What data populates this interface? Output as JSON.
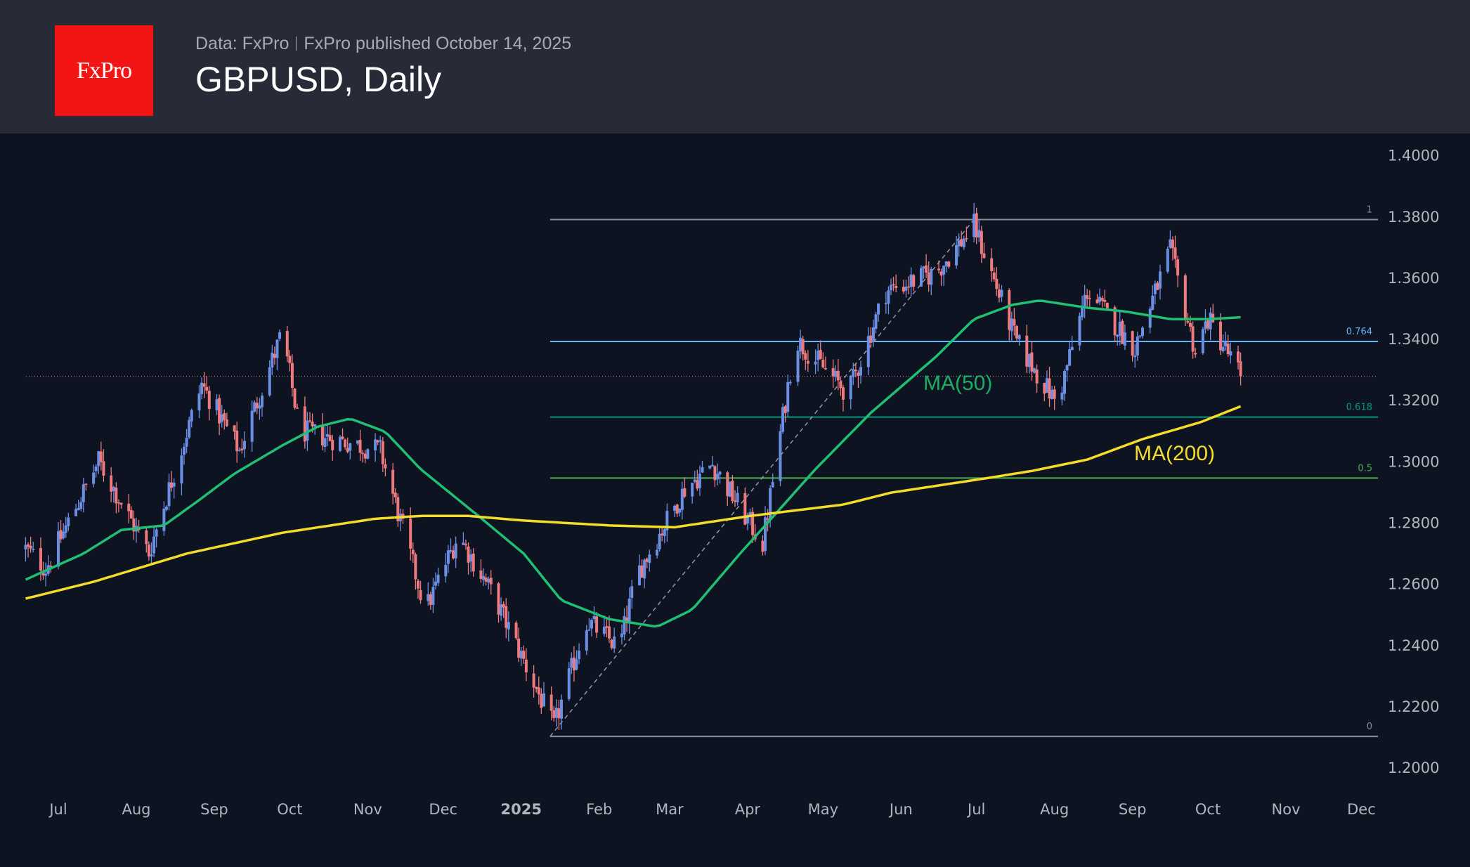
{
  "header": {
    "logo_text": "FxPro",
    "data_source": "Data: FxPro",
    "published": "FxPro published October 14, 2025",
    "title": "GBPUSD, Daily"
  },
  "colors": {
    "up": "#6c8fe6",
    "down": "#ef7a7d",
    "ma50": "#1fbf74",
    "ma200": "#f5dc2a",
    "price_line": "#f77c80"
  },
  "chart_data": {
    "type": "candlestick",
    "title": "GBPUSD, Daily",
    "x_unit": "days since 2024-07-01",
    "ylim": [
      1.2,
      1.4
    ],
    "y_ticks": [
      "1.4000",
      "1.3800",
      "1.3600",
      "1.3400",
      "1.3200",
      "1.3000",
      "1.2800",
      "1.2600",
      "1.2400",
      "1.2200",
      "1.2000"
    ],
    "x_ticks": [
      {
        "label": "Jul",
        "day": 0
      },
      {
        "label": "Aug",
        "day": 31
      },
      {
        "label": "Sep",
        "day": 62
      },
      {
        "label": "Oct",
        "day": 92
      },
      {
        "label": "Nov",
        "day": 123
      },
      {
        "label": "Dec",
        "day": 153
      },
      {
        "label": "2025",
        "day": 184,
        "bold": true
      },
      {
        "label": "Feb",
        "day": 215
      },
      {
        "label": "Mar",
        "day": 243
      },
      {
        "label": "Apr",
        "day": 274
      },
      {
        "label": "May",
        "day": 304
      },
      {
        "label": "Jun",
        "day": 335
      },
      {
        "label": "Jul",
        "day": 365
      },
      {
        "label": "Aug",
        "day": 396
      },
      {
        "label": "Sep",
        "day": 427
      },
      {
        "label": "Oct",
        "day": 457
      },
      {
        "label": "Nov",
        "day": 488
      },
      {
        "label": "Dec",
        "day": 518
      }
    ],
    "price_path": [
      [
        -13,
        1.2714
      ],
      [
        -5,
        1.265
      ],
      [
        16,
        1.3
      ],
      [
        36,
        1.27
      ],
      [
        57,
        1.325
      ],
      [
        72,
        1.3035
      ],
      [
        89,
        1.342
      ],
      [
        96,
        1.31
      ],
      [
        128,
        1.3035
      ],
      [
        146,
        1.2515
      ],
      [
        159,
        1.276
      ],
      [
        174,
        1.2545
      ],
      [
        197,
        1.213
      ],
      [
        210,
        1.248
      ],
      [
        223,
        1.239
      ],
      [
        230,
        1.263
      ],
      [
        249,
        1.291
      ],
      [
        260,
        1.299
      ],
      [
        280,
        1.273
      ],
      [
        293,
        1.34
      ],
      [
        314,
        1.322
      ],
      [
        329,
        1.3556
      ],
      [
        349,
        1.3617
      ],
      [
        364,
        1.377
      ],
      [
        381,
        1.3387
      ],
      [
        397,
        1.3188
      ],
      [
        409,
        1.3556
      ],
      [
        428,
        1.337
      ],
      [
        442,
        1.369
      ],
      [
        452,
        1.3357
      ],
      [
        457,
        1.3464
      ],
      [
        470,
        1.328
      ]
    ],
    "series": [
      {
        "name": "MA(50)",
        "label": "MA(50)",
        "points": [
          [
            -13,
            1.2613
          ],
          [
            10,
            1.2698
          ],
          [
            25,
            1.2775
          ],
          [
            42,
            1.279
          ],
          [
            55,
            1.2867
          ],
          [
            70,
            1.2959
          ],
          [
            89,
            1.3051
          ],
          [
            103,
            1.3112
          ],
          [
            116,
            1.3139
          ],
          [
            130,
            1.3096
          ],
          [
            144,
            1.2974
          ],
          [
            167,
            1.2821
          ],
          [
            185,
            1.2698
          ],
          [
            200,
            1.2545
          ],
          [
            219,
            1.2484
          ],
          [
            238,
            1.2459
          ],
          [
            252,
            1.2515
          ],
          [
            271,
            1.2698
          ],
          [
            286,
            1.2836
          ],
          [
            301,
            1.2974
          ],
          [
            323,
            1.3158
          ],
          [
            349,
            1.3342
          ],
          [
            364,
            1.3464
          ],
          [
            379,
            1.351
          ],
          [
            390,
            1.3525
          ],
          [
            409,
            1.3501
          ],
          [
            424,
            1.3489
          ],
          [
            442,
            1.3464
          ],
          [
            457,
            1.3464
          ],
          [
            470,
            1.347
          ]
        ]
      },
      {
        "name": "MA(200)",
        "label": "MA(200)",
        "points": [
          [
            -13,
            1.2551
          ],
          [
            14,
            1.2606
          ],
          [
            51,
            1.2698
          ],
          [
            89,
            1.2766
          ],
          [
            126,
            1.2812
          ],
          [
            144,
            1.2821
          ],
          [
            163,
            1.2821
          ],
          [
            185,
            1.2806
          ],
          [
            219,
            1.279
          ],
          [
            245,
            1.2784
          ],
          [
            275,
            1.2821
          ],
          [
            312,
            1.2858
          ],
          [
            331,
            1.2897
          ],
          [
            368,
            1.2943
          ],
          [
            387,
            1.2968
          ],
          [
            409,
            1.3005
          ],
          [
            431,
            1.3072
          ],
          [
            454,
            1.3127
          ],
          [
            470,
            1.3179
          ]
        ]
      }
    ],
    "last_price": 1.3277,
    "fibonacci": {
      "start": [
        195.5,
        1.2101
      ],
      "end": [
        364,
        1.3789
      ],
      "levels": [
        {
          "label": "1",
          "price": 1.3789,
          "color": "#8a8d96"
        },
        {
          "label": "0.764",
          "price": 1.3391,
          "color": "#64b5f6"
        },
        {
          "label": "0.618",
          "price": 1.3144,
          "color": "#089981"
        },
        {
          "label": "0.5",
          "price": 1.2945,
          "color": "#4caf50"
        },
        {
          "label": "0",
          "price": 1.2101,
          "color": "#8a8d96"
        }
      ]
    }
  }
}
